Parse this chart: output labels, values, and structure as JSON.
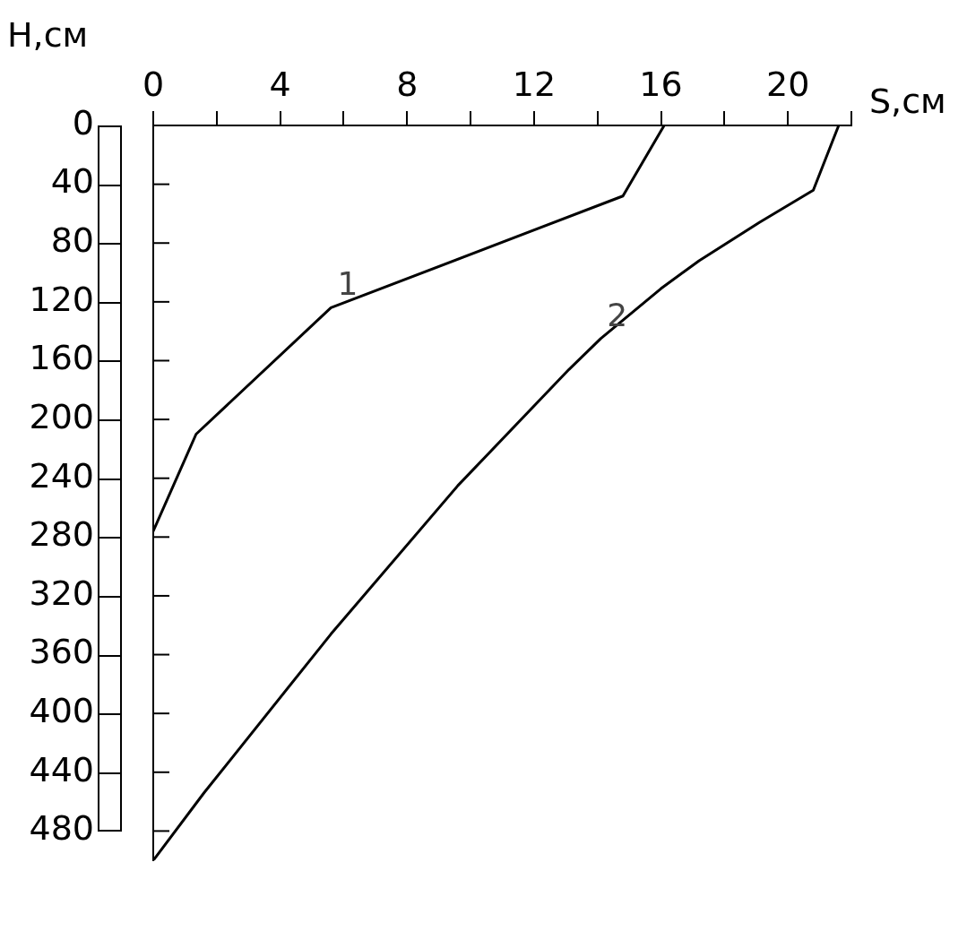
{
  "chart_data": {
    "type": "line",
    "xlabel": "S,см",
    "ylabel": "H,см",
    "xlim": [
      0,
      22
    ],
    "ylim": [
      500,
      0
    ],
    "xticks": [
      0,
      {
        "value": 2,
        "label": null
      },
      4,
      {
        "value": 6,
        "label": null
      },
      8,
      {
        "value": 10,
        "label": null
      },
      12,
      {
        "value": 14,
        "label": null
      },
      16,
      {
        "value": 18,
        "label": null
      },
      20,
      {
        "value": 22,
        "label": null
      }
    ],
    "yticks": [
      0,
      40,
      80,
      120,
      160,
      200,
      240,
      280,
      320,
      360,
      400,
      440,
      480
    ],
    "series": [
      {
        "name": "1",
        "color": "#000000",
        "x": [
          16.1,
          14.8,
          5.6,
          1.35,
          0
        ],
        "values": [
          0,
          48,
          124,
          210,
          276
        ]
      },
      {
        "name": "2",
        "color": "#000000",
        "x": [
          21.6,
          20.8,
          19.1,
          17.2,
          16.0,
          14.1,
          13.1,
          9.6,
          5.6,
          1.6,
          0
        ],
        "values": [
          0,
          44,
          66,
          92,
          111,
          145,
          166,
          245,
          346,
          454,
          500
        ]
      }
    ],
    "grid": false,
    "legend": false,
    "marker": "none",
    "line_style": "solid"
  }
}
